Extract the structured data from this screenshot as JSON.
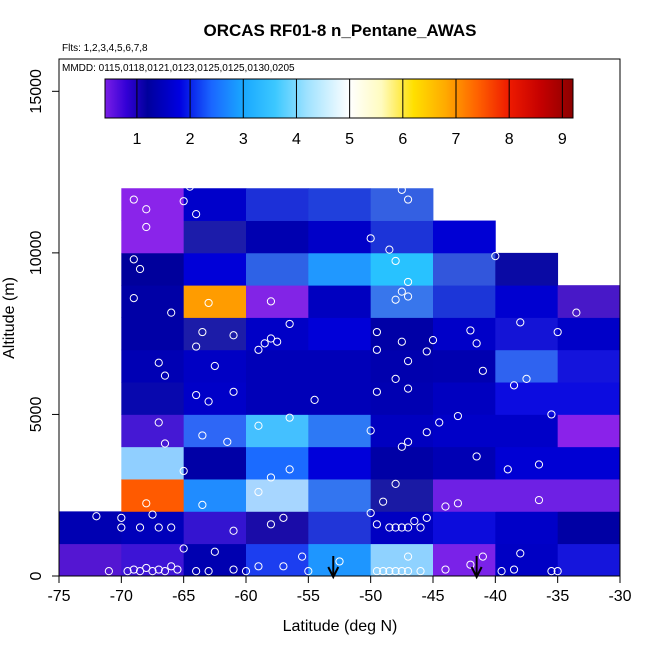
{
  "chart_data": {
    "type": "heatmap",
    "title": "ORCAS RF01-8 n_Pentane_AWAS",
    "flights_note": "Flts: 1,2,3,4,5,6,7,8",
    "dates_note": "MMDD: 0115,0118,0121,0123,0125,0125,0130,0205",
    "xlabel": "Latitude (deg N)",
    "ylabel": "Altitude (m)",
    "xlim": [
      -75,
      -30
    ],
    "ylim": [
      0,
      16000
    ],
    "x_ticks": [
      "-75",
      "-70",
      "-65",
      "-60",
      "-55",
      "-50",
      "-45",
      "-40",
      "-35",
      "-30"
    ],
    "x_tick_values": [
      -75,
      -70,
      -65,
      -60,
      -55,
      -50,
      -45,
      -40,
      -35,
      -30
    ],
    "y_ticks": [
      "0",
      "5000",
      "10000",
      "15000"
    ],
    "y_tick_values": [
      0,
      5000,
      10000,
      15000
    ],
    "colorbar": {
      "range": [
        0.4,
        9.2
      ],
      "ticks": [
        "1",
        "2",
        "3",
        "4",
        "5",
        "6",
        "7",
        "8",
        "9"
      ],
      "tick_values": [
        1,
        2,
        3,
        4,
        5,
        6,
        7,
        8,
        9
      ],
      "stops": [
        [
          0.4,
          "#7a1ee6"
        ],
        [
          0.8,
          "#3300d6"
        ],
        [
          1.2,
          "#00009c"
        ],
        [
          1.8,
          "#0000e0"
        ],
        [
          2.4,
          "#1a66ff"
        ],
        [
          3.0,
          "#19a8ff"
        ],
        [
          3.6,
          "#3cc8ff"
        ],
        [
          4.2,
          "#9fe2ff"
        ],
        [
          5.0,
          "#ffffff"
        ],
        [
          5.6,
          "#fffbbf"
        ],
        [
          6.2,
          "#ffe000"
        ],
        [
          6.8,
          "#ffaa00"
        ],
        [
          7.4,
          "#ff6200"
        ],
        [
          8.0,
          "#ee1a00"
        ],
        [
          8.6,
          "#c40000"
        ],
        [
          9.2,
          "#8c0000"
        ]
      ]
    },
    "bin_width_deg": 5,
    "bin_height_m": 1000,
    "cells": [
      {
        "lat": -75,
        "alt": 0,
        "color": "#5416d2"
      },
      {
        "lat": -70,
        "alt": 0,
        "color": "#3d14d6"
      },
      {
        "lat": -65,
        "alt": 0,
        "color": "#0000b0"
      },
      {
        "lat": -60,
        "alt": 0,
        "color": "#1c3ef0"
      },
      {
        "lat": -55,
        "alt": 0,
        "color": "#1e96ff"
      },
      {
        "lat": -50,
        "alt": 0,
        "color": "#8fd2ff"
      },
      {
        "lat": -45,
        "alt": 0,
        "color": "#7a22e8"
      },
      {
        "lat": -40,
        "alt": 0,
        "color": "#0000c4"
      },
      {
        "lat": -35,
        "alt": 0,
        "color": "#1515dc"
      },
      {
        "lat": -75,
        "alt": 1000,
        "color": "#0000b2"
      },
      {
        "lat": -70,
        "alt": 1000,
        "color": "#0000ba"
      },
      {
        "lat": -65,
        "alt": 1000,
        "color": "#3414d0"
      },
      {
        "lat": -60,
        "alt": 1000,
        "color": "#1a0ca8"
      },
      {
        "lat": -55,
        "alt": 1000,
        "color": "#2136d8"
      },
      {
        "lat": -50,
        "alt": 1000,
        "color": "#0000c2"
      },
      {
        "lat": -45,
        "alt": 1000,
        "color": "#0c0cdc"
      },
      {
        "lat": -40,
        "alt": 1000,
        "color": "#0000c8"
      },
      {
        "lat": -35,
        "alt": 1000,
        "color": "#0000a4"
      },
      {
        "lat": -70,
        "alt": 2000,
        "color": "#ff5a00"
      },
      {
        "lat": -65,
        "alt": 2000,
        "color": "#208cff"
      },
      {
        "lat": -60,
        "alt": 2000,
        "color": "#a7d6ff"
      },
      {
        "lat": -55,
        "alt": 2000,
        "color": "#3375f0"
      },
      {
        "lat": -50,
        "alt": 2000,
        "color": "#1a1aa4"
      },
      {
        "lat": -45,
        "alt": 2000,
        "color": "#6e20e4"
      },
      {
        "lat": -40,
        "alt": 2000,
        "color": "#6e20e4"
      },
      {
        "lat": -35,
        "alt": 2000,
        "color": "#6e20e4"
      },
      {
        "lat": -70,
        "alt": 3000,
        "color": "#90cfff"
      },
      {
        "lat": -65,
        "alt": 3000,
        "color": "#0000a6"
      },
      {
        "lat": -60,
        "alt": 3000,
        "color": "#1b6bff"
      },
      {
        "lat": -55,
        "alt": 3000,
        "color": "#0000da"
      },
      {
        "lat": -50,
        "alt": 3000,
        "color": "#0000a6"
      },
      {
        "lat": -45,
        "alt": 3000,
        "color": "#0000b4"
      },
      {
        "lat": -40,
        "alt": 3000,
        "color": "#0000d4"
      },
      {
        "lat": -35,
        "alt": 3000,
        "color": "#0000d4"
      },
      {
        "lat": -70,
        "alt": 4000,
        "color": "#4518d4"
      },
      {
        "lat": -65,
        "alt": 4000,
        "color": "#2e67f6"
      },
      {
        "lat": -60,
        "alt": 4000,
        "color": "#44c0ff"
      },
      {
        "lat": -55,
        "alt": 4000,
        "color": "#2d79f5"
      },
      {
        "lat": -50,
        "alt": 4000,
        "color": "#0000c0"
      },
      {
        "lat": -45,
        "alt": 4000,
        "color": "#0000c8"
      },
      {
        "lat": -40,
        "alt": 4000,
        "color": "#0000c8"
      },
      {
        "lat": -35,
        "alt": 4000,
        "color": "#8a22ea"
      },
      {
        "lat": -70,
        "alt": 5000,
        "color": "#0808ae"
      },
      {
        "lat": -65,
        "alt": 5000,
        "color": "#0000c8"
      },
      {
        "lat": -60,
        "alt": 5000,
        "color": "#0000b8"
      },
      {
        "lat": -55,
        "alt": 5000,
        "color": "#0000b8"
      },
      {
        "lat": -50,
        "alt": 5000,
        "color": "#0000b2"
      },
      {
        "lat": -45,
        "alt": 5000,
        "color": "#0000c0"
      },
      {
        "lat": -40,
        "alt": 5000,
        "color": "#0c0ce0"
      },
      {
        "lat": -35,
        "alt": 5000,
        "color": "#0c0ce0"
      },
      {
        "lat": -70,
        "alt": 6000,
        "color": "#0000b4"
      },
      {
        "lat": -65,
        "alt": 6000,
        "color": "#0000c4"
      },
      {
        "lat": -60,
        "alt": 6000,
        "color": "#0000b8"
      },
      {
        "lat": -55,
        "alt": 6000,
        "color": "#0000b8"
      },
      {
        "lat": -50,
        "alt": 6000,
        "color": "#0000ae"
      },
      {
        "lat": -45,
        "alt": 6000,
        "color": "#0000b0"
      },
      {
        "lat": -40,
        "alt": 6000,
        "color": "#2f63f0"
      },
      {
        "lat": -35,
        "alt": 6000,
        "color": "#1414dc"
      },
      {
        "lat": -70,
        "alt": 7000,
        "color": "#0000a6"
      },
      {
        "lat": -65,
        "alt": 7000,
        "color": "#1c1ca8"
      },
      {
        "lat": -60,
        "alt": 7000,
        "color": "#0000c6"
      },
      {
        "lat": -55,
        "alt": 7000,
        "color": "#0000d8"
      },
      {
        "lat": -50,
        "alt": 7000,
        "color": "#0000a6"
      },
      {
        "lat": -45,
        "alt": 7000,
        "color": "#0000c8"
      },
      {
        "lat": -40,
        "alt": 7000,
        "color": "#1414d6"
      },
      {
        "lat": -35,
        "alt": 7000,
        "color": "#0000c8"
      },
      {
        "lat": -70,
        "alt": 8000,
        "color": "#0000a6"
      },
      {
        "lat": -65,
        "alt": 8000,
        "color": "#ff9c00"
      },
      {
        "lat": -60,
        "alt": 8000,
        "color": "#8224e6"
      },
      {
        "lat": -55,
        "alt": 8000,
        "color": "#0000c0"
      },
      {
        "lat": -50,
        "alt": 8000,
        "color": "#3876ec"
      },
      {
        "lat": -45,
        "alt": 8000,
        "color": "#1c36d8"
      },
      {
        "lat": -40,
        "alt": 8000,
        "color": "#0000d0"
      },
      {
        "lat": -35,
        "alt": 8000,
        "color": "#4818c8"
      },
      {
        "lat": -70,
        "alt": 9000,
        "color": "#00009c"
      },
      {
        "lat": -65,
        "alt": 9000,
        "color": "#0000d8"
      },
      {
        "lat": -60,
        "alt": 9000,
        "color": "#2e62e6"
      },
      {
        "lat": -55,
        "alt": 9000,
        "color": "#2098ff"
      },
      {
        "lat": -50,
        "alt": 9000,
        "color": "#28c2ff"
      },
      {
        "lat": -45,
        "alt": 9000,
        "color": "#3256dc"
      },
      {
        "lat": -40,
        "alt": 9000,
        "color": "#0a0aa4"
      },
      {
        "lat": -70,
        "alt": 10000,
        "color": "#8a24ea"
      },
      {
        "lat": -65,
        "alt": 10000,
        "color": "#1c1caa"
      },
      {
        "lat": -60,
        "alt": 10000,
        "color": "#0000b0"
      },
      {
        "lat": -55,
        "alt": 10000,
        "color": "#0000c8"
      },
      {
        "lat": -50,
        "alt": 10000,
        "color": "#1c34d8"
      },
      {
        "lat": -45,
        "alt": 10000,
        "color": "#0000d4"
      },
      {
        "lat": -70,
        "alt": 11000,
        "color": "#8a24ea"
      },
      {
        "lat": -65,
        "alt": 11000,
        "color": "#0000ca"
      },
      {
        "lat": -60,
        "alt": 11000,
        "color": "#1c30d8"
      },
      {
        "lat": -55,
        "alt": 11000,
        "color": "#2040dc"
      },
      {
        "lat": -50,
        "alt": 11000,
        "color": "#3460e2"
      }
    ],
    "samples": [
      {
        "lat": -71,
        "alt": 150
      },
      {
        "lat": -69.5,
        "alt": 150
      },
      {
        "lat": -69,
        "alt": 200
      },
      {
        "lat": -68.5,
        "alt": 150
      },
      {
        "lat": -68,
        "alt": 250
      },
      {
        "lat": -67.5,
        "alt": 150
      },
      {
        "lat": -67,
        "alt": 200
      },
      {
        "lat": -66.5,
        "alt": 150
      },
      {
        "lat": -66,
        "alt": 300
      },
      {
        "lat": -65.5,
        "alt": 200
      },
      {
        "lat": -64,
        "alt": 150
      },
      {
        "lat": -63,
        "alt": 150
      },
      {
        "lat": -61,
        "alt": 200
      },
      {
        "lat": -60,
        "alt": 150
      },
      {
        "lat": -59,
        "alt": 300
      },
      {
        "lat": -57,
        "alt": 300
      },
      {
        "lat": -55,
        "alt": 150
      },
      {
        "lat": -49.5,
        "alt": 150
      },
      {
        "lat": -49,
        "alt": 150
      },
      {
        "lat": -48.5,
        "alt": 150
      },
      {
        "lat": -48,
        "alt": 150
      },
      {
        "lat": -47.5,
        "alt": 150
      },
      {
        "lat": -47,
        "alt": 150
      },
      {
        "lat": -46,
        "alt": 150
      },
      {
        "lat": -44,
        "alt": 200
      },
      {
        "lat": -42,
        "alt": 350
      },
      {
        "lat": -39.5,
        "alt": 150
      },
      {
        "lat": -38.5,
        "alt": 200
      },
      {
        "lat": -35.5,
        "alt": 150
      },
      {
        "lat": -35,
        "alt": 150
      },
      {
        "lat": -65,
        "alt": 850
      },
      {
        "lat": -62.5,
        "alt": 750
      },
      {
        "lat": -55.5,
        "alt": 600
      },
      {
        "lat": -52.5,
        "alt": 450
      },
      {
        "lat": -47,
        "alt": 600
      },
      {
        "lat": -41,
        "alt": 600
      },
      {
        "lat": -38,
        "alt": 700
      },
      {
        "lat": -72,
        "alt": 1850
      },
      {
        "lat": -70,
        "alt": 1800
      },
      {
        "lat": -70,
        "alt": 1500
      },
      {
        "lat": -68.5,
        "alt": 1500
      },
      {
        "lat": -67.5,
        "alt": 1900
      },
      {
        "lat": -67,
        "alt": 1500
      },
      {
        "lat": -66,
        "alt": 1500
      },
      {
        "lat": -61,
        "alt": 1400
      },
      {
        "lat": -58,
        "alt": 1600
      },
      {
        "lat": -57,
        "alt": 1800
      },
      {
        "lat": -50,
        "alt": 1950
      },
      {
        "lat": -49.5,
        "alt": 1600
      },
      {
        "lat": -48.5,
        "alt": 1500
      },
      {
        "lat": -48,
        "alt": 1500
      },
      {
        "lat": -47.5,
        "alt": 1500
      },
      {
        "lat": -47,
        "alt": 1500
      },
      {
        "lat": -46.5,
        "alt": 1700
      },
      {
        "lat": -46,
        "alt": 1500
      },
      {
        "lat": -45.5,
        "alt": 1800
      },
      {
        "lat": -49,
        "alt": 2300
      },
      {
        "lat": -68,
        "alt": 2250
      },
      {
        "lat": -63.5,
        "alt": 2200
      },
      {
        "lat": -59,
        "alt": 2600
      },
      {
        "lat": -48,
        "alt": 2850
      },
      {
        "lat": -44,
        "alt": 2150
      },
      {
        "lat": -43,
        "alt": 2250
      },
      {
        "lat": -36.5,
        "alt": 2350
      },
      {
        "lat": -65,
        "alt": 3250
      },
      {
        "lat": -58,
        "alt": 3050
      },
      {
        "lat": -56.5,
        "alt": 3300
      },
      {
        "lat": -41.5,
        "alt": 3700
      },
      {
        "lat": -39,
        "alt": 3300
      },
      {
        "lat": -36.5,
        "alt": 3450
      },
      {
        "lat": -66.5,
        "alt": 4100
      },
      {
        "lat": -67,
        "alt": 4750
      },
      {
        "lat": -63.5,
        "alt": 4350
      },
      {
        "lat": -61.5,
        "alt": 4150
      },
      {
        "lat": -59,
        "alt": 4650
      },
      {
        "lat": -56.5,
        "alt": 4900
      },
      {
        "lat": -50,
        "alt": 4500
      },
      {
        "lat": -47.5,
        "alt": 4000
      },
      {
        "lat": -47,
        "alt": 4150
      },
      {
        "lat": -45.5,
        "alt": 4450
      },
      {
        "lat": -44.5,
        "alt": 4750
      },
      {
        "lat": -43,
        "alt": 4950
      },
      {
        "lat": -35.5,
        "alt": 5000
      },
      {
        "lat": -64,
        "alt": 5600
      },
      {
        "lat": -63,
        "alt": 5400
      },
      {
        "lat": -61,
        "alt": 5700
      },
      {
        "lat": -54.5,
        "alt": 5450
      },
      {
        "lat": -49.5,
        "alt": 5700
      },
      {
        "lat": -48,
        "alt": 6100
      },
      {
        "lat": -47,
        "alt": 5800
      },
      {
        "lat": -38.5,
        "alt": 5900
      },
      {
        "lat": -37.5,
        "alt": 6100
      },
      {
        "lat": -67,
        "alt": 6600
      },
      {
        "lat": -66.5,
        "alt": 6200
      },
      {
        "lat": -62.5,
        "alt": 6500
      },
      {
        "lat": -47,
        "alt": 6650
      },
      {
        "lat": -41,
        "alt": 6350
      },
      {
        "lat": -64,
        "alt": 7100
      },
      {
        "lat": -63.5,
        "alt": 7550
      },
      {
        "lat": -61,
        "alt": 7450
      },
      {
        "lat": -59,
        "alt": 7000
      },
      {
        "lat": -58.5,
        "alt": 7200
      },
      {
        "lat": -58,
        "alt": 7350
      },
      {
        "lat": -57.5,
        "alt": 7250
      },
      {
        "lat": -56.5,
        "alt": 7800
      },
      {
        "lat": -49.5,
        "alt": 7550
      },
      {
        "lat": -49.5,
        "alt": 7000
      },
      {
        "lat": -47.5,
        "alt": 7250
      },
      {
        "lat": -45.5,
        "alt": 6950
      },
      {
        "lat": -45,
        "alt": 7300
      },
      {
        "lat": -42,
        "alt": 7600
      },
      {
        "lat": -41.5,
        "alt": 7200
      },
      {
        "lat": -38,
        "alt": 7850
      },
      {
        "lat": -35,
        "alt": 7550
      },
      {
        "lat": -66,
        "alt": 8150
      },
      {
        "lat": -69,
        "alt": 8600
      },
      {
        "lat": -63,
        "alt": 8450
      },
      {
        "lat": -58,
        "alt": 8500
      },
      {
        "lat": -48,
        "alt": 8550
      },
      {
        "lat": -47.5,
        "alt": 8800
      },
      {
        "lat": -47,
        "alt": 8650
      },
      {
        "lat": -33.5,
        "alt": 8150
      },
      {
        "lat": -69,
        "alt": 9800
      },
      {
        "lat": -68.5,
        "alt": 9500
      },
      {
        "lat": -48.5,
        "alt": 10100
      },
      {
        "lat": -48,
        "alt": 9750
      },
      {
        "lat": -47,
        "alt": 9100
      },
      {
        "lat": -40,
        "alt": 9900
      },
      {
        "lat": -50,
        "alt": 10450
      },
      {
        "lat": -68,
        "alt": 10800
      },
      {
        "lat": -68,
        "alt": 11350
      },
      {
        "lat": -69,
        "alt": 11650
      },
      {
        "lat": -65,
        "alt": 11600
      },
      {
        "lat": -64,
        "alt": 11200
      },
      {
        "lat": -64.5,
        "alt": 12050
      },
      {
        "lat": -47.5,
        "alt": 11950
      },
      {
        "lat": -47,
        "alt": 11650
      }
    ],
    "arrows": [
      {
        "lat": -53,
        "label": "flight_arrow_1"
      },
      {
        "lat": -41.5,
        "label": "flight_arrow_2"
      }
    ]
  }
}
